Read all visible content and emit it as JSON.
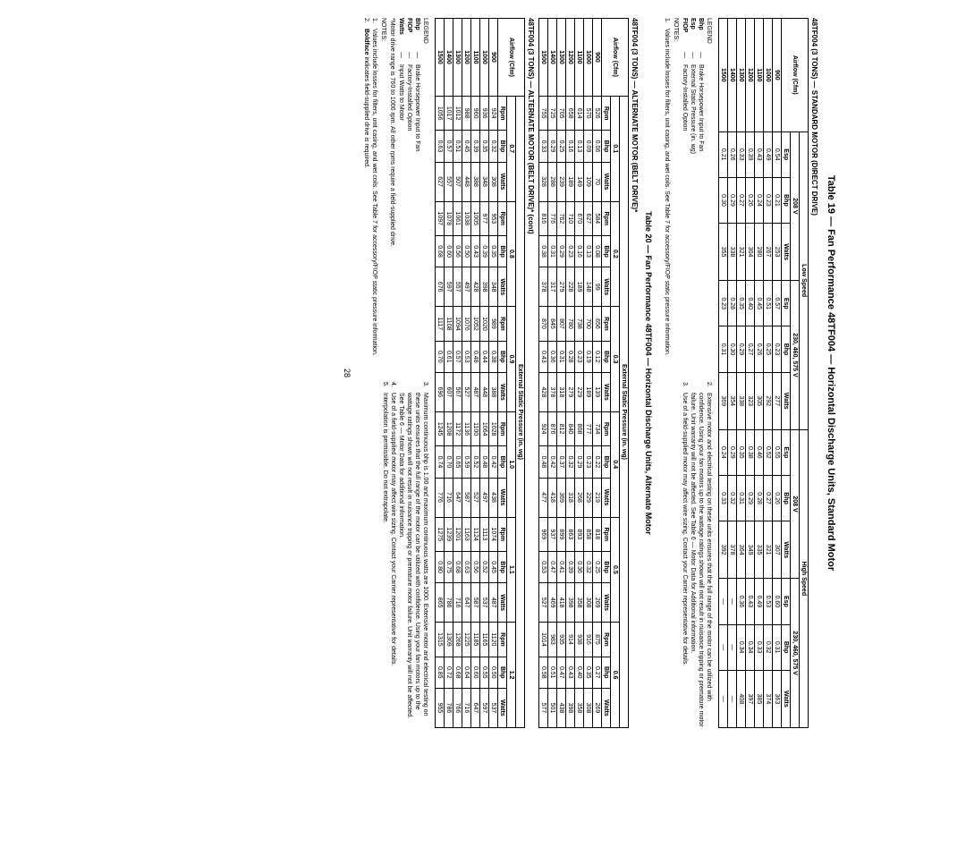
{
  "title19": "Table 19 — Fan Performance 48TF004 — Horizontal Discharge Units, Standard Motor",
  "title20": "Table 20 — Fan Performance 48TF004 — Horizontal Discharge Units, Alternate Motor",
  "t19": {
    "caption": "48TF004 (3 TONS) — STANDARD MOTOR (DIRECT DRIVE)",
    "lowspeed": "Low Speed",
    "highspeed": "High Speed",
    "v208": "208 V",
    "v230": "230, 460, 575 V",
    "airflow": "Airflow (Cfm)",
    "esp": "Esp",
    "bhp": "Bhp",
    "watts": "Watts",
    "rows": [
      {
        "cfm": "900",
        "a": "0.54",
        "b": "0.21",
        "c": "253",
        "d": "0.57",
        "e": "0.23",
        "f": "277",
        "g": "0.55",
        "h": "0.26",
        "i": "307",
        "j": "0.60",
        "k": "0.31",
        "l": "363"
      },
      {
        "cfm": "1000",
        "a": "0.49",
        "b": "0.23",
        "c": "267",
        "d": "0.51",
        "e": "0.25",
        "f": "292",
        "g": "0.52",
        "h": "0.27",
        "i": "321",
        "j": "0.53",
        "k": "0.32",
        "l": "374"
      },
      {
        "cfm": "1100",
        "a": "0.43",
        "b": "0.24",
        "c": "280",
        "d": "0.45",
        "e": "0.26",
        "f": "305",
        "g": "0.46",
        "h": "0.28",
        "i": "335",
        "j": "0.49",
        "k": "0.33",
        "l": "385"
      },
      {
        "cfm": "1200",
        "a": "0.39",
        "b": "0.26",
        "c": "304",
        "d": "0.40",
        "e": "0.27",
        "f": "323",
        "g": "0.38",
        "h": "0.29",
        "i": "349",
        "j": "0.43",
        "k": "0.34",
        "l": "397"
      },
      {
        "cfm": "1300",
        "a": "0.33",
        "b": "0.27",
        "c": "321",
        "d": "0.35",
        "e": "0.29",
        "f": "338",
        "g": "0.35",
        "h": "0.31",
        "i": "364",
        "j": "0.36",
        "k": "0.34",
        "l": "408"
      },
      {
        "cfm": "1400",
        "a": "0.26",
        "b": "0.29",
        "c": "338",
        "d": "0.28",
        "e": "0.30",
        "f": "354",
        "g": "0.29",
        "h": "0.32",
        "i": "378",
        "j": "—",
        "k": "—",
        "l": "—"
      },
      {
        "cfm": "1500",
        "a": "0.21",
        "b": "0.30",
        "c": "355",
        "d": "0.23",
        "e": "0.31",
        "f": "369",
        "g": "0.24",
        "h": "0.33",
        "i": "392",
        "j": "—",
        "k": "—",
        "l": "—"
      }
    ]
  },
  "t20a": {
    "caption": "48TF004 (3 TONS) — ALTERNATE MOTOR (BELT DRIVE)*",
    "esp_label": "External Static Pressure (in. wg)",
    "airflow": "Airflow (Cfm)",
    "rpm": "Rpm",
    "bhp": "Bhp",
    "watts": "Watts",
    "heads": [
      "0.1",
      "0.2",
      "0.3",
      "0.4",
      "0.5",
      "0.6"
    ],
    "rows": [
      {
        "cfm": "900",
        "v": [
          "526",
          "0.06",
          "70",
          "584",
          "0.08",
          "99",
          "656",
          "0.12",
          "139",
          "734",
          "0.22",
          "219",
          "818",
          "0.25",
          "269",
          "875",
          "0.27",
          "269"
        ]
      },
      {
        "cfm": "1000",
        "v": [
          "570",
          "0.09",
          "109",
          "627",
          "0.13",
          "148",
          "700",
          "0.19",
          "189",
          "777",
          "0.23",
          "229",
          "858",
          "0.32",
          "308",
          "916",
          "0.35",
          "308"
        ]
      },
      {
        "cfm": "1100",
        "v": [
          "614",
          "0.13",
          "149",
          "670",
          "0.16",
          "189",
          "738",
          "0.23",
          "229",
          "808",
          "0.29",
          "268",
          "893",
          "0.36",
          "358",
          "938",
          "0.40",
          "358"
        ]
      },
      {
        "cfm": "1200",
        "v": [
          "658",
          "0.16",
          "189",
          "710",
          "0.23",
          "228",
          "780",
          "0.28",
          "279",
          "840",
          "0.32",
          "318",
          "863",
          "0.39",
          "398",
          "914",
          "0.43",
          "398"
        ]
      },
      {
        "cfm": "1300",
        "v": [
          "705",
          "0.25",
          "239",
          "762",
          "0.29",
          "279",
          "807",
          "0.31",
          "318",
          "812",
          "0.37",
          "369",
          "899",
          "0.41",
          "418",
          "935",
          "0.47",
          "438"
        ]
      },
      {
        "cfm": "1400",
        "v": [
          "725",
          "0.29",
          "288",
          "776",
          "0.31",
          "317",
          "845",
          "0.36",
          "378",
          "876",
          "0.42",
          "418",
          "937",
          "0.47",
          "469",
          "983",
          "0.51",
          "501"
        ]
      },
      {
        "cfm": "1500",
        "v": [
          "755",
          "0.33",
          "328",
          "816",
          "0.38",
          "378",
          "870",
          "0.43",
          "428",
          "924",
          "0.48",
          "477",
          "969",
          "0.53",
          "527",
          "1014",
          "0.58",
          "577"
        ]
      }
    ]
  },
  "t20b": {
    "caption": "48TF004 (3 TONS) — ALTERNATE MOTOR (BELT DRIVE)* (cont)",
    "esp_label": "External Static Pressure (in. wg)",
    "airflow": "Airflow (Cfm)",
    "rpm": "Rpm",
    "bhp": "Bhp",
    "watts": "Watts",
    "heads": [
      "0.7",
      "0.8",
      "0.9",
      "1.0",
      "1.1",
      "1.2"
    ],
    "rows": [
      {
        "cfm": "900",
        "v": [
          "924",
          "0.32",
          "308",
          "953",
          "0.35",
          "348",
          "989",
          "0.38",
          "388",
          "1028",
          "0.42",
          "438",
          "1074",
          "0.45",
          "487",
          "1120",
          "0.50",
          "537"
        ]
      },
      {
        "cfm": "1000",
        "v": [
          "936",
          "0.35",
          "348",
          "977",
          "0.39",
          "398",
          "1020",
          "0.44",
          "448",
          "1064",
          "0.48",
          "497",
          "1113",
          "0.52",
          "537",
          "1165",
          "0.55",
          "597"
        ]
      },
      {
        "cfm": "1100",
        "v": [
          "960",
          "0.39",
          "388",
          "1005",
          "0.43",
          "428",
          "1052",
          "0.48",
          "487",
          "1100",
          "0.52",
          "527",
          "1124",
          "0.56",
          "587",
          "1185",
          "0.60",
          "647"
        ]
      },
      {
        "cfm": "1200",
        "v": [
          "988",
          "0.45",
          "448",
          "1038",
          "0.50",
          "497",
          "1076",
          "0.53",
          "527",
          "1136",
          "0.59",
          "587",
          "1163",
          "0.63",
          "647",
          "1225",
          "0.64",
          "716"
        ]
      },
      {
        "cfm": "1300",
        "v": [
          "1012",
          "0.51",
          "507",
          "1061",
          "0.56",
          "557",
          "1094",
          "0.57",
          "567",
          "1172",
          "0.65",
          "647",
          "1201",
          "0.68",
          "716",
          "1268",
          "0.68",
          "766"
        ]
      },
      {
        "cfm": "1400",
        "v": [
          "1017",
          "0.57",
          "557",
          "1078",
          "0.60",
          "597",
          "1108",
          "0.61",
          "607",
          "1208",
          "0.70",
          "716",
          "1239",
          "0.75",
          "786",
          "1309",
          "0.72",
          "786"
        ]
      },
      {
        "cfm": "1500",
        "v": [
          "1056",
          "0.63",
          "627",
          "1097",
          "0.68",
          "676",
          "1117",
          "0.70",
          "696",
          "1245",
          "0.74",
          "776",
          "1275",
          "0.80",
          "865",
          "1315",
          "0.85",
          "955"
        ]
      }
    ]
  },
  "legend": {
    "title": "LEGEND",
    "bhp": "Bhp",
    "bhp_def": "Brake Horsepower Input to Fan",
    "esp": "Esp",
    "esp_def": "External Static Pressure (in. wg)",
    "fiop": "FIOP",
    "fiop_def": "Factory-Installed Option",
    "watts": "Watts",
    "watts_def": "Input Watts to Motor"
  },
  "star": "*Motor drive range is 760 to 1000 rpm. All other rpms require a field-supplied drive.",
  "notes_label": "NOTES:",
  "note1": "Values include losses for filters, unit casing, and wet coils. See Table 7 for accessory/FIOP static pressure information.",
  "note2_pre": "Extensive motor and electrical testing on these units ensures that the full range of the motor can be utilized with confidence. Using your fan motors up to the wattage ratings shown will not result in nuisance tripping or premature motor failure. Unit warranty will not be affected. See Table 6 — Motor Data for Additional information.",
  "note3": "Use of a field-supplied motor may affect wire sizing. Contact your Carrier representative for details.",
  "note_bold": "Boldface",
  "note_bold_rest": " indicates field-supplied drive is required.",
  "note_max": "Maximum continuous bhp is 1.00 and maximum continuous watts are 1000. Extensive motor and electrical testing on these units ensures that the full range of the motor can be utilized with confidence. Using your fan motors up to the wattage ratings shown will not result in nuisance tripping or premature motor failure. Unit warranty will not be affected. See Table 6 — Motor Data for additional information.",
  "note_interp": "Interpolation is permissible. Do not extrapolate.",
  "pagenum": "28"
}
